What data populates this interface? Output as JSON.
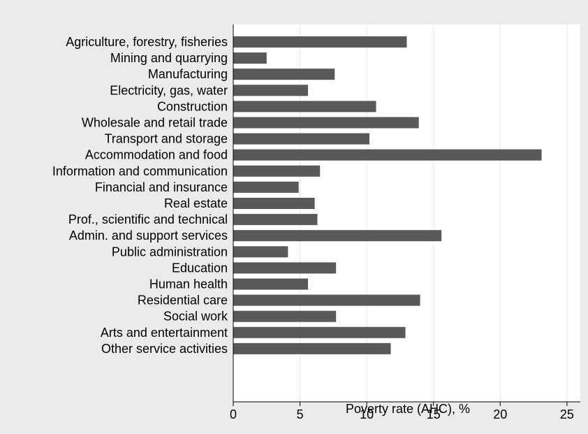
{
  "chart_data": {
    "type": "bar",
    "orientation": "horizontal",
    "categories": [
      "Agriculture, forestry, fisheries",
      "Mining and quarrying",
      "Manufacturing",
      "Electricity, gas, water",
      "Construction",
      "Wholesale and retail trade",
      "Transport and storage",
      "Accommodation and food",
      "Information and communication",
      "Financial and insurance",
      "Real estate",
      "Prof., scientific and technical",
      "Admin. and support services",
      "Public administration",
      "Education",
      "Human health",
      "Residential care",
      "Social work",
      "Arts and entertainment",
      "Other service activities"
    ],
    "values": [
      13.0,
      2.5,
      7.6,
      5.6,
      10.7,
      13.9,
      10.2,
      23.1,
      6.5,
      4.9,
      6.1,
      6.3,
      15.6,
      4.1,
      7.7,
      5.6,
      14.0,
      7.7,
      12.9,
      11.8
    ],
    "xlabel": "Poverty rate (AHC), %",
    "ylabel": "",
    "xlim": [
      0,
      26
    ],
    "xticks": [
      0,
      5,
      10,
      15,
      20,
      25
    ],
    "grid": true,
    "legend": "none",
    "colors": {
      "bar": "#595959",
      "background": "#ebebeb",
      "plot_background": "#ffffff",
      "grid": "#e8e8e8",
      "axis": "#000000"
    }
  }
}
